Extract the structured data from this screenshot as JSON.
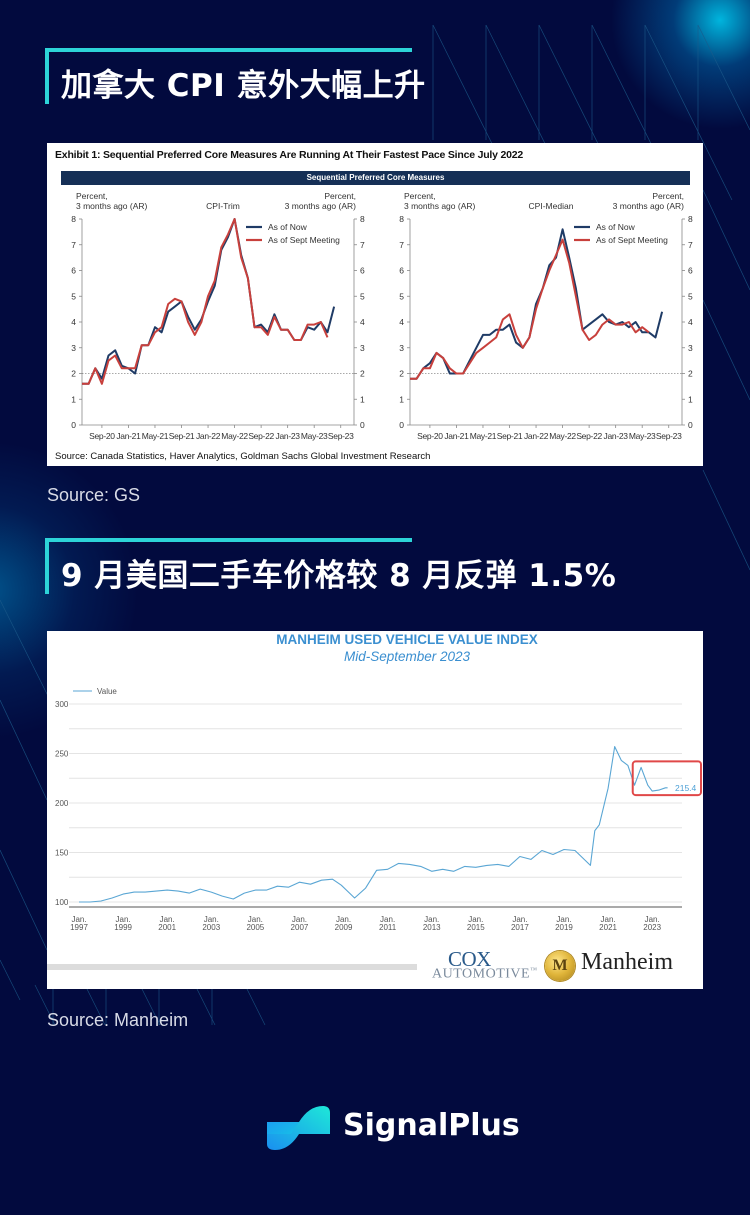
{
  "colors": {
    "background": "#020a3e",
    "accent_cyan": "#2dd4d8",
    "gs_banner": "#152f56",
    "series_now": "#1f3b66",
    "series_sept": "#c8403c",
    "manheim_line": "#5aa6d4",
    "manheim_title": "#3b8fd0",
    "highlight_box": "#e04848"
  },
  "section1": {
    "title": "加拿大 CPI 意外大幅上升",
    "source": "Source: GS"
  },
  "section2": {
    "title": "9 月美国二手车价格较 8 月反弹 1.5%",
    "source": "Source: Manheim"
  },
  "gs_card": {
    "exhibit_title": "Exhibit 1: Sequential Preferred Core Measures Are Running At Their Fastest Pace Since July 2022",
    "banner": "Sequential Preferred Core Measures",
    "source_note": "Source: Canada Statistics, Haver Analytics, Goldman Sachs Global Investment Research"
  },
  "manheim_card": {
    "title": "MANHEIM USED VEHICLE VALUE INDEX",
    "subtitle": "Mid-September 2023",
    "legend": "Value",
    "last_value_label": "215.4",
    "logo_cox_top": "COX",
    "logo_cox_bottom": "AUTOMOTIVE",
    "logo_cox_tm": "™",
    "logo_manheim": "Manheim",
    "logo_manheim_coin": "M"
  },
  "brand": {
    "name": "SignalPlus"
  },
  "chart_data": [
    {
      "type": "line",
      "title": "CPI-Trim",
      "ylabel_left": "Percent,\n3 months ago (AR)",
      "ylabel_right": "Percent,\n3 months ago (AR)",
      "ylabel_left_l1": "Percent,",
      "ylabel_left_l2": "3 months ago (AR)",
      "ylim": [
        0,
        8
      ],
      "yticks": [
        "0",
        "1",
        "2",
        "3",
        "4",
        "5",
        "6",
        "7",
        "8"
      ],
      "xtick_labels": [
        "Sep-20",
        "Jan-21",
        "May-21",
        "Sep-21",
        "Jan-22",
        "May-22",
        "Sep-22",
        "Jan-23",
        "May-23",
        "Sep-23"
      ],
      "reference_line": 2,
      "grid": false,
      "legend_position": "upper right",
      "x_start": "Jun-20",
      "x_step": "monthly",
      "series": [
        {
          "name": "As of Now",
          "color": "#1f3b66",
          "values": [
            1.6,
            1.6,
            2.2,
            1.8,
            2.7,
            2.9,
            2.3,
            2.2,
            2.0,
            3.1,
            3.1,
            3.8,
            3.6,
            4.4,
            4.6,
            4.8,
            4.2,
            3.7,
            4.1,
            4.8,
            5.4,
            6.8,
            7.3,
            8.0,
            6.6,
            5.7,
            3.8,
            3.9,
            3.6,
            4.3,
            3.7,
            3.7,
            3.3,
            3.3,
            3.8,
            3.7,
            4.0,
            3.6,
            4.6
          ]
        },
        {
          "name": "As of Sept Meeting",
          "color": "#c8403c",
          "values": [
            1.6,
            1.6,
            2.2,
            1.6,
            2.5,
            2.7,
            2.2,
            2.2,
            2.2,
            3.1,
            3.1,
            3.6,
            3.8,
            4.7,
            4.9,
            4.8,
            4.0,
            3.5,
            4.0,
            5.0,
            5.6,
            6.9,
            7.4,
            8.0,
            6.5,
            5.7,
            3.8,
            3.8,
            3.5,
            4.2,
            3.7,
            3.7,
            3.3,
            3.3,
            3.9,
            3.9,
            4.0,
            3.4
          ]
        }
      ]
    },
    {
      "type": "line",
      "title": "CPI-Median",
      "ylabel_left": "Percent,\n3 months ago (AR)",
      "ylabel_right": "Percent,\n3 months ago (AR)",
      "ylim": [
        0,
        8
      ],
      "yticks": [
        "0",
        "1",
        "2",
        "3",
        "4",
        "5",
        "6",
        "7",
        "8"
      ],
      "xtick_labels": [
        "Sep-20",
        "Jan-21",
        "May-21",
        "Sep-21",
        "Jan-22",
        "May-22",
        "Sep-22",
        "Jan-23",
        "May-23",
        "Sep-23"
      ],
      "reference_line": 2,
      "grid": false,
      "legend_position": "upper right",
      "x_start": "Jun-20",
      "x_step": "monthly",
      "series": [
        {
          "name": "As of Now",
          "color": "#1f3b66",
          "values": [
            1.8,
            1.8,
            2.2,
            2.4,
            2.8,
            2.6,
            2.0,
            2.0,
            2.0,
            2.5,
            3.0,
            3.5,
            3.5,
            3.7,
            3.7,
            3.9,
            3.2,
            3.0,
            3.4,
            4.7,
            5.3,
            6.2,
            6.5,
            7.6,
            6.5,
            5.3,
            3.7,
            3.9,
            4.1,
            4.3,
            4.0,
            3.9,
            4.0,
            3.8,
            4.0,
            3.6,
            3.6,
            3.4,
            4.4
          ]
        },
        {
          "name": "As of Sept Meeting",
          "color": "#c8403c",
          "values": [
            1.8,
            1.8,
            2.2,
            2.2,
            2.8,
            2.6,
            2.2,
            2.0,
            2.0,
            2.4,
            2.8,
            3.0,
            3.2,
            3.4,
            4.1,
            4.3,
            3.5,
            3.0,
            3.4,
            4.5,
            5.3,
            6.0,
            6.6,
            7.2,
            6.3,
            5.0,
            3.7,
            3.3,
            3.5,
            3.9,
            4.1,
            3.9,
            3.9,
            4.0,
            3.6,
            3.8,
            3.6
          ]
        }
      ]
    },
    {
      "type": "line",
      "title": "MANHEIM USED VEHICLE VALUE INDEX",
      "subtitle": "Mid-September 2023",
      "legend": [
        "Value"
      ],
      "legend_position": "top-left",
      "ylim": [
        95,
        305
      ],
      "yticks": [
        "100",
        "150",
        "200",
        "250",
        "300"
      ],
      "xtick_labels": [
        "Jan.\n1997",
        "Jan.\n1999",
        "Jan.\n2001",
        "Jan.\n2003",
        "Jan.\n2005",
        "Jan.\n2007",
        "Jan.\n2009",
        "Jan.\n2011",
        "Jan.\n2013",
        "Jan.\n2015",
        "Jan.\n2017",
        "Jan.\n2019",
        "Jan.\n2021",
        "Jan.\n2023"
      ],
      "grid": true,
      "annotation": {
        "label": "215.4",
        "highlight": "red box around 2022-2023 segment"
      },
      "x": [
        1997.0,
        1997.5,
        1998.0,
        1998.5,
        1999.0,
        1999.5,
        2000.0,
        2000.5,
        2001.0,
        2001.5,
        2002.0,
        2002.5,
        2003.0,
        2003.5,
        2004.0,
        2004.5,
        2005.0,
        2005.5,
        2006.0,
        2006.5,
        2007.0,
        2007.5,
        2008.0,
        2008.5,
        2008.9,
        2009.5,
        2010.0,
        2010.5,
        2011.0,
        2011.5,
        2012.0,
        2012.5,
        2013.0,
        2013.5,
        2014.0,
        2014.5,
        2015.0,
        2015.5,
        2016.0,
        2016.5,
        2017.0,
        2017.5,
        2018.0,
        2018.5,
        2019.0,
        2019.5,
        2020.2,
        2020.4,
        2020.6,
        2021.0,
        2021.3,
        2021.6,
        2021.9,
        2022.2,
        2022.5,
        2022.8,
        2023.0,
        2023.3,
        2023.6,
        2023.7
      ],
      "series": [
        {
          "name": "Value",
          "color": "#5aa6d4",
          "values": [
            100,
            100,
            101,
            104,
            108,
            110,
            110,
            111,
            112,
            111,
            109,
            113,
            110,
            106,
            103,
            109,
            112,
            112,
            116,
            115,
            120,
            118,
            122,
            123,
            117,
            104,
            114,
            132,
            133,
            139,
            138,
            136,
            131,
            133,
            131,
            136,
            135,
            137,
            138,
            136,
            146,
            143,
            152,
            148,
            153,
            152,
            137,
            172,
            178,
            215,
            257,
            243,
            238,
            218,
            236,
            218,
            212,
            213,
            215.4,
            215.4
          ]
        }
      ]
    }
  ]
}
